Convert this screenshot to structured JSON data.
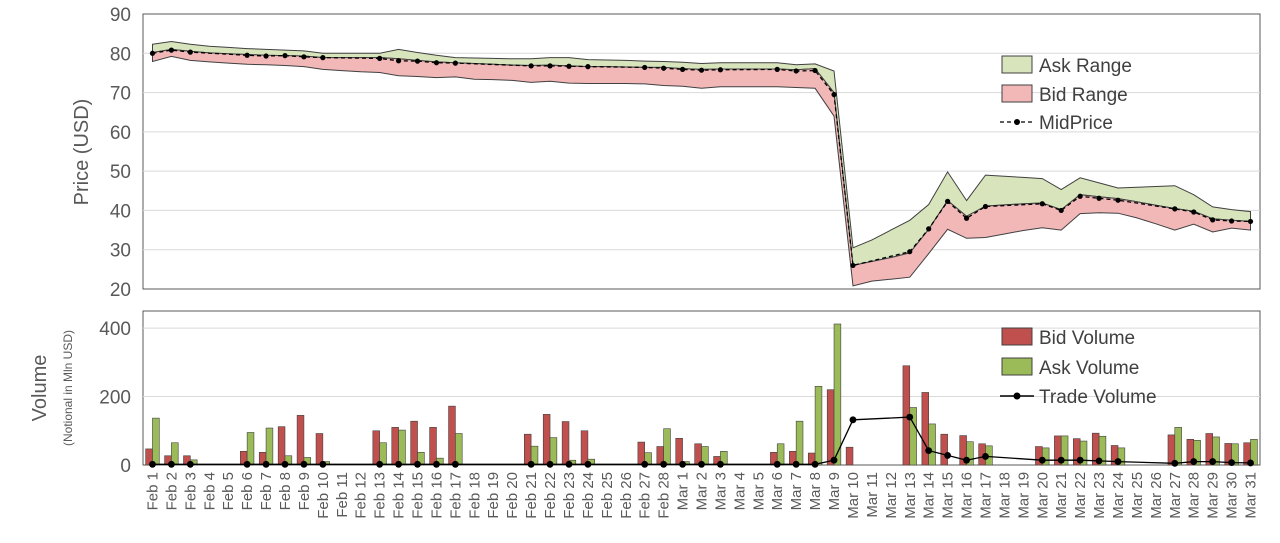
{
  "chart_data": [
    {
      "type": "area",
      "ylabel": "Price (USD)",
      "ylim": [
        20,
        90
      ],
      "yticks": [
        20,
        30,
        40,
        50,
        60,
        70,
        80,
        90
      ],
      "grid": true,
      "legend_position": "right",
      "x": [
        "Feb 1",
        "Feb 2",
        "Feb 3",
        "Feb 4",
        "Feb 5",
        "Feb 6",
        "Feb 7",
        "Feb 8",
        "Feb 9",
        "Feb 10",
        "Feb 11",
        "Feb 12",
        "Feb 13",
        "Feb 14",
        "Feb 15",
        "Feb 16",
        "Feb 17",
        "Feb 18",
        "Feb 19",
        "Feb 20",
        "Feb 21",
        "Feb 22",
        "Feb 23",
        "Feb 24",
        "Feb 25",
        "Feb 26",
        "Feb 27",
        "Feb 28",
        "Mar 1",
        "Mar 2",
        "Mar 3",
        "Mar 4",
        "Mar 5",
        "Mar 6",
        "Mar 7",
        "Mar 8",
        "Mar 9",
        "Mar 10",
        "Mar 11",
        "Mar 12",
        "Mar 13",
        "Mar 14",
        "Mar 15",
        "Mar 16",
        "Mar 17",
        "Mar 18",
        "Mar 19",
        "Mar 20",
        "Mar 21",
        "Mar 22",
        "Mar 23",
        "Mar 24",
        "Mar 25",
        "Mar 26",
        "Mar 27",
        "Mar 28",
        "Mar 29",
        "Mar 30",
        "Mar 31"
      ],
      "series": [
        {
          "name": "Ask Range",
          "color": "#d8e4bc",
          "low": [
            80.2,
            81.0,
            80.5,
            80.1,
            79.9,
            79.7,
            79.5,
            79.4,
            79.3,
            78.9,
            78.9,
            78.9,
            78.9,
            78.6,
            78.2,
            77.8,
            77.6,
            77.4,
            77.2,
            77.0,
            76.9,
            77.0,
            76.8,
            76.6,
            76.6,
            76.5,
            76.4,
            76.4,
            76.1,
            75.9,
            76.0,
            76.0,
            76.0,
            76.0,
            75.8,
            76.1,
            70.0,
            26.0,
            27.0,
            28.0,
            29.2,
            35.2,
            42.5,
            38.5,
            41.1,
            41.4,
            41.7,
            41.9,
            40.2,
            44.0,
            43.5,
            43.0,
            42.2,
            41.3,
            40.5,
            39.8,
            37.9,
            37.5,
            37.2
          ],
          "high": [
            82.3,
            83.0,
            82.3,
            81.8,
            81.5,
            81.2,
            81.0,
            80.8,
            80.6,
            80.0,
            80.0,
            80.0,
            80.0,
            81.0,
            80.2,
            79.5,
            78.9,
            78.8,
            78.7,
            78.6,
            78.6,
            78.9,
            78.9,
            78.4,
            78.3,
            78.2,
            78.0,
            77.9,
            77.7,
            77.4,
            77.6,
            77.6,
            77.6,
            77.6,
            77.1,
            77.3,
            75.5,
            30.5,
            32.5,
            35.0,
            37.5,
            41.5,
            49.8,
            42.5,
            49.0,
            48.7,
            48.4,
            48.1,
            45.3,
            48.3,
            47.0,
            45.7,
            45.9,
            46.1,
            46.3,
            44.0,
            40.9,
            40.2,
            39.7
          ]
        },
        {
          "name": "Bid Range",
          "color": "#f2b8b8",
          "low": [
            77.9,
            79.2,
            78.2,
            77.8,
            77.5,
            77.2,
            77.1,
            76.9,
            76.6,
            75.9,
            75.6,
            75.3,
            75.1,
            74.3,
            74.1,
            73.8,
            74.0,
            73.4,
            73.3,
            73.1,
            72.6,
            72.9,
            72.4,
            72.3,
            72.3,
            72.3,
            72.2,
            71.8,
            71.6,
            71.1,
            71.5,
            71.5,
            71.5,
            71.5,
            71.3,
            71.1,
            64.0,
            20.8,
            22.0,
            22.5,
            23.0,
            29.0,
            35.2,
            32.9,
            33.1,
            34.0,
            34.9,
            35.6,
            35.0,
            39.2,
            39.4,
            39.3,
            38.1,
            36.6,
            35.0,
            36.5,
            34.5,
            35.5,
            35.0
          ],
          "high": [
            80.2,
            81.0,
            80.5,
            80.1,
            79.9,
            79.7,
            79.5,
            79.4,
            79.3,
            78.9,
            78.9,
            78.9,
            78.9,
            78.6,
            78.2,
            77.8,
            77.6,
            77.4,
            77.2,
            77.0,
            76.9,
            77.0,
            76.8,
            76.6,
            76.6,
            76.5,
            76.4,
            76.4,
            76.1,
            75.9,
            76.0,
            76.0,
            76.0,
            76.0,
            75.8,
            76.1,
            70.0,
            26.0,
            27.0,
            28.0,
            29.2,
            35.2,
            42.5,
            38.5,
            41.1,
            41.4,
            41.7,
            41.9,
            40.2,
            44.0,
            43.5,
            43.0,
            42.2,
            41.3,
            40.5,
            39.8,
            37.9,
            37.5,
            37.2
          ]
        },
        {
          "name": "MidPrice",
          "color": "#000000",
          "values": [
            80.0,
            80.8,
            80.3,
            null,
            null,
            79.5,
            79.3,
            79.4,
            79.1,
            78.9,
            null,
            null,
            78.7,
            78.1,
            78.0,
            77.6,
            77.5,
            null,
            null,
            null,
            76.8,
            76.8,
            76.7,
            76.6,
            null,
            null,
            76.4,
            76.2,
            75.9,
            75.7,
            75.8,
            null,
            null,
            75.9,
            75.5,
            75.6,
            69.5,
            26.0,
            null,
            null,
            29.5,
            35.3,
            42.3,
            38.0,
            41.0,
            null,
            null,
            41.7,
            40.0,
            43.6,
            43.1,
            42.6,
            null,
            null,
            40.4,
            39.6,
            37.6,
            37.3,
            37.2
          ]
        }
      ]
    },
    {
      "type": "bar",
      "ylabel": "Volume",
      "ylabel_sub": "(Notional in Mln USD)",
      "ylim": [
        0,
        450
      ],
      "yticks": [
        0,
        200,
        400
      ],
      "grid": true,
      "legend_position": "right",
      "series": [
        {
          "name": "Bid Volume",
          "color": "#c0504d",
          "values": [
            47,
            27,
            27,
            0,
            0,
            40,
            37,
            112,
            145,
            92,
            0,
            0,
            100,
            110,
            128,
            110,
            172,
            0,
            0,
            0,
            90,
            148,
            127,
            100,
            0,
            0,
            67,
            54,
            78,
            62,
            25,
            0,
            0,
            37,
            40,
            35,
            220,
            52,
            0,
            0,
            290,
            212,
            90,
            86,
            62,
            0,
            0,
            54,
            85,
            77,
            93,
            57,
            0,
            0,
            88,
            75,
            92,
            63,
            65
          ]
        },
        {
          "name": "Ask Volume",
          "color": "#9bbb59",
          "values": [
            137,
            65,
            15,
            0,
            0,
            95,
            108,
            27,
            22,
            10,
            0,
            0,
            65,
            102,
            37,
            20,
            92,
            0,
            0,
            0,
            55,
            80,
            14,
            17,
            0,
            0,
            36,
            106,
            10,
            54,
            40,
            0,
            0,
            62,
            128,
            230,
            412,
            0,
            0,
            0,
            168,
            120,
            0,
            68,
            56,
            0,
            0,
            50,
            85,
            70,
            84,
            50,
            0,
            0,
            110,
            72,
            82,
            62,
            75
          ]
        },
        {
          "name": "Trade Volume",
          "color": "#000000",
          "values": [
            2,
            2,
            2,
            null,
            null,
            2,
            2,
            2,
            2,
            2,
            null,
            null,
            2,
            2,
            2,
            2,
            2,
            null,
            null,
            null,
            2,
            2,
            2,
            2,
            null,
            null,
            2,
            2,
            2,
            2,
            2,
            null,
            null,
            2,
            2,
            2,
            14,
            132,
            null,
            null,
            140,
            42,
            28,
            14,
            25,
            null,
            null,
            14,
            14,
            14,
            12,
            10,
            null,
            null,
            5,
            10,
            10,
            7,
            6
          ]
        }
      ]
    }
  ]
}
